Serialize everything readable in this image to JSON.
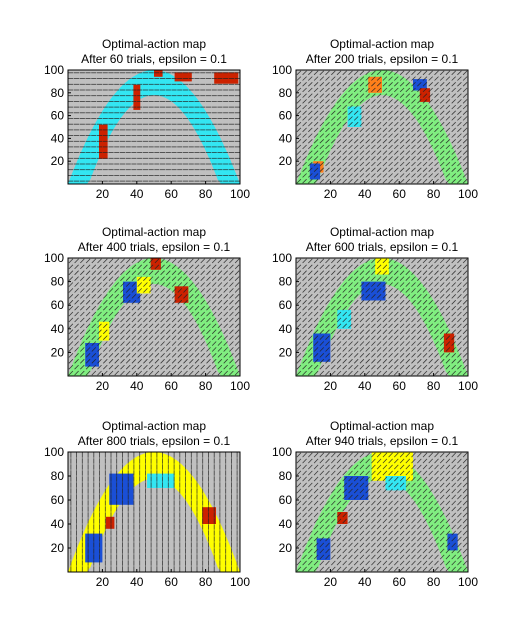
{
  "chart_data": [
    {
      "type": "heatmap",
      "title": "Optimal-action map",
      "subtitle": "After 60 trials, epsilon = 0.1",
      "xlim": [
        0,
        100
      ],
      "ylim": [
        0,
        100
      ],
      "xticks": [
        20,
        40,
        60,
        80,
        100
      ],
      "yticks": [
        20,
        40,
        60,
        80,
        100
      ],
      "background_color": "#c0c0c0",
      "dominant_band_color": "#33e6f2",
      "arrow_style": "horizontal",
      "patches": [
        {
          "color": "#cc2200",
          "x": 85,
          "y": 88,
          "w": 14,
          "h": 10
        },
        {
          "color": "#cc2200",
          "x": 62,
          "y": 90,
          "w": 10,
          "h": 8
        },
        {
          "color": "#cc2200",
          "x": 38,
          "y": 65,
          "w": 4,
          "h": 22
        },
        {
          "color": "#cc2200",
          "x": 18,
          "y": 22,
          "w": 5,
          "h": 30
        },
        {
          "color": "#cc2200",
          "x": 50,
          "y": 94,
          "w": 5,
          "h": 6
        }
      ]
    },
    {
      "type": "heatmap",
      "title": "Optimal-action map",
      "subtitle": "After 200 trials, epsilon = 0.1",
      "xlim": [
        0,
        100
      ],
      "ylim": [
        0,
        100
      ],
      "xticks": [
        20,
        40,
        60,
        80,
        100
      ],
      "yticks": [
        20,
        40,
        60,
        80,
        100
      ],
      "background_color": "#c0c0c0",
      "dominant_band_color": "#80ee80",
      "arrow_style": "diagonal",
      "patches": [
        {
          "color": "#1a4fd6",
          "x": 68,
          "y": 82,
          "w": 8,
          "h": 10
        },
        {
          "color": "#ff7f1a",
          "x": 42,
          "y": 80,
          "w": 8,
          "h": 14
        },
        {
          "color": "#ff7f1a",
          "x": 10,
          "y": 10,
          "w": 6,
          "h": 10
        },
        {
          "color": "#cc2200",
          "x": 72,
          "y": 72,
          "w": 6,
          "h": 12
        },
        {
          "color": "#33e6f2",
          "x": 30,
          "y": 50,
          "w": 8,
          "h": 18
        },
        {
          "color": "#1a4fd6",
          "x": 8,
          "y": 4,
          "w": 6,
          "h": 14
        }
      ]
    },
    {
      "type": "heatmap",
      "title": "Optimal-action map",
      "subtitle": "After 400 trials, epsilon = 0.1",
      "xlim": [
        0,
        100
      ],
      "ylim": [
        0,
        100
      ],
      "xticks": [
        20,
        40,
        60,
        80,
        100
      ],
      "yticks": [
        20,
        40,
        60,
        80,
        100
      ],
      "background_color": "#c0c0c0",
      "dominant_band_color": "#80ee80",
      "arrow_style": "diagonal",
      "patches": [
        {
          "color": "#1a4fd6",
          "x": 32,
          "y": 62,
          "w": 10,
          "h": 18
        },
        {
          "color": "#ffff00",
          "x": 40,
          "y": 70,
          "w": 8,
          "h": 14
        },
        {
          "color": "#cc2200",
          "x": 62,
          "y": 62,
          "w": 8,
          "h": 14
        },
        {
          "color": "#1a4fd6",
          "x": 10,
          "y": 8,
          "w": 8,
          "h": 20
        },
        {
          "color": "#ffff00",
          "x": 18,
          "y": 30,
          "w": 6,
          "h": 16
        },
        {
          "color": "#cc2200",
          "x": 48,
          "y": 90,
          "w": 6,
          "h": 10
        }
      ]
    },
    {
      "type": "heatmap",
      "title": "Optimal-action map",
      "subtitle": "After 600 trials, epsilon = 0.1",
      "xlim": [
        0,
        100
      ],
      "ylim": [
        0,
        100
      ],
      "xticks": [
        20,
        40,
        60,
        80,
        100
      ],
      "yticks": [
        20,
        40,
        60,
        80,
        100
      ],
      "background_color": "#c0c0c0",
      "dominant_band_color": "#80ee80",
      "arrow_style": "diagonal",
      "patches": [
        {
          "color": "#1a4fd6",
          "x": 38,
          "y": 64,
          "w": 14,
          "h": 16
        },
        {
          "color": "#ffff00",
          "x": 46,
          "y": 86,
          "w": 8,
          "h": 14
        },
        {
          "color": "#1a4fd6",
          "x": 10,
          "y": 12,
          "w": 10,
          "h": 24
        },
        {
          "color": "#cc2200",
          "x": 86,
          "y": 20,
          "w": 6,
          "h": 16
        },
        {
          "color": "#33e6f2",
          "x": 24,
          "y": 40,
          "w": 8,
          "h": 16
        }
      ]
    },
    {
      "type": "heatmap",
      "title": "Optimal-action map",
      "subtitle": "After 800 trials, epsilon = 0.1",
      "xlim": [
        0,
        100
      ],
      "ylim": [
        0,
        100
      ],
      "xticks": [
        20,
        40,
        60,
        80,
        100
      ],
      "yticks": [
        20,
        40,
        60,
        80,
        100
      ],
      "background_color": "#c0c0c0",
      "dominant_band_color": "#ffff00",
      "arrow_style": "vertical",
      "patches": [
        {
          "color": "#1a4fd6",
          "x": 24,
          "y": 56,
          "w": 14,
          "h": 26
        },
        {
          "color": "#1a4fd6",
          "x": 10,
          "y": 8,
          "w": 10,
          "h": 24
        },
        {
          "color": "#33e6f2",
          "x": 46,
          "y": 70,
          "w": 16,
          "h": 12
        },
        {
          "color": "#cc2200",
          "x": 78,
          "y": 40,
          "w": 8,
          "h": 14
        },
        {
          "color": "#cc2200",
          "x": 22,
          "y": 36,
          "w": 5,
          "h": 10
        }
      ]
    },
    {
      "type": "heatmap",
      "title": "Optimal-action map",
      "subtitle": "After 940 trials, epsilon = 0.1",
      "xlim": [
        0,
        100
      ],
      "ylim": [
        0,
        100
      ],
      "xticks": [
        20,
        40,
        60,
        80,
        100
      ],
      "yticks": [
        20,
        40,
        60,
        80,
        100
      ],
      "background_color": "#c0c0c0",
      "dominant_band_color": "#80ee80",
      "arrow_style": "diagonal",
      "patches": [
        {
          "color": "#ffff00",
          "x": 44,
          "y": 76,
          "w": 24,
          "h": 24
        },
        {
          "color": "#1a4fd6",
          "x": 28,
          "y": 60,
          "w": 14,
          "h": 20
        },
        {
          "color": "#33e6f2",
          "x": 52,
          "y": 68,
          "w": 12,
          "h": 12
        },
        {
          "color": "#1a4fd6",
          "x": 88,
          "y": 18,
          "w": 6,
          "h": 14
        },
        {
          "color": "#cc2200",
          "x": 24,
          "y": 40,
          "w": 6,
          "h": 10
        },
        {
          "color": "#1a4fd6",
          "x": 12,
          "y": 10,
          "w": 8,
          "h": 18
        }
      ]
    }
  ]
}
